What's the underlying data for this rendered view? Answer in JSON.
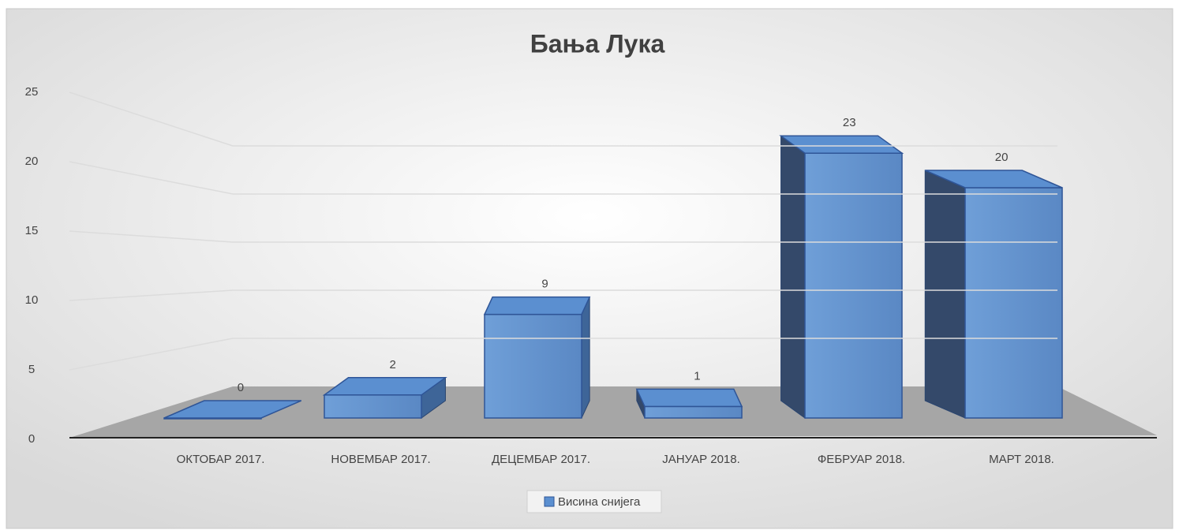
{
  "chart_data": {
    "type": "bar3d",
    "title": "Бања Лука",
    "categories": [
      "ОКТОБАР 2017.",
      "НОВЕМБАР 2017.",
      "ДЕЦЕМБАР 2017.",
      "ЈАНУАР 2018.",
      "ФЕБРУАР 2018.",
      "МАРТ 2018."
    ],
    "series": [
      {
        "name": "Висина снијега",
        "color": "#5b8fd0",
        "values": [
          0,
          2,
          9,
          1,
          23,
          20
        ]
      }
    ],
    "ylim": [
      0,
      25
    ],
    "yticks": [
      0,
      5,
      10,
      15,
      20,
      25
    ],
    "grid": true,
    "legend": "bottom"
  }
}
